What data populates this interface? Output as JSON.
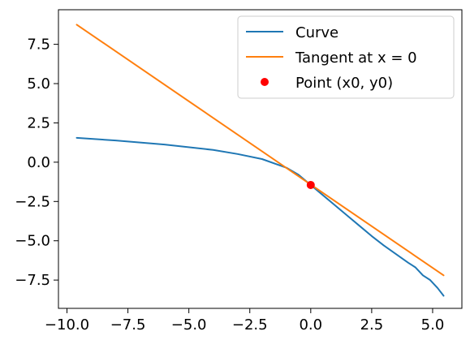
{
  "chart_data": {
    "type": "line",
    "title": "",
    "xlabel": "",
    "ylabel": "",
    "xlim": [
      -10.35,
      6.2
    ],
    "ylim": [
      -9.3,
      9.7
    ],
    "xticks": [
      -10.0,
      -7.5,
      -5.0,
      -2.5,
      0.0,
      2.5,
      5.0
    ],
    "xtick_labels": [
      "−10.0",
      "−7.5",
      "−5.0",
      "−2.5",
      "0.0",
      "2.5",
      "5.0"
    ],
    "yticks": [
      -7.5,
      -5.0,
      -2.5,
      0.0,
      2.5,
      5.0,
      7.5
    ],
    "ytick_labels": [
      "−7.5",
      "−5.0",
      "−2.5",
      "0.0",
      "2.5",
      "5.0",
      "7.5"
    ],
    "grid": false,
    "legend_placement": "top-right",
    "series": [
      {
        "name": "Curve",
        "kind": "line",
        "color": "#1f77b4",
        "x": [
          -9.6,
          -8.0,
          -6.0,
          -4.0,
          -3.0,
          -2.0,
          -1.0,
          -0.5,
          0.0,
          0.5,
          1.0,
          1.5,
          2.0,
          2.5,
          3.0,
          3.5,
          4.0,
          4.3,
          4.6,
          4.9,
          5.2,
          5.45
        ],
        "y": [
          1.55,
          1.38,
          1.12,
          0.78,
          0.52,
          0.2,
          -0.35,
          -0.8,
          -1.45,
          -2.1,
          -2.75,
          -3.4,
          -4.05,
          -4.7,
          -5.3,
          -5.85,
          -6.4,
          -6.7,
          -7.2,
          -7.5,
          -8.0,
          -8.5
        ]
      },
      {
        "name": "Tangent at x = 0",
        "kind": "line",
        "color": "#ff7f0e",
        "x": [
          -9.6,
          5.45
        ],
        "y": [
          8.75,
          -7.2
        ]
      },
      {
        "name": "Point (x0, y0)",
        "kind": "scatter",
        "color": "#ff0000",
        "x": [
          0.0
        ],
        "y": [
          -1.45
        ]
      }
    ]
  }
}
